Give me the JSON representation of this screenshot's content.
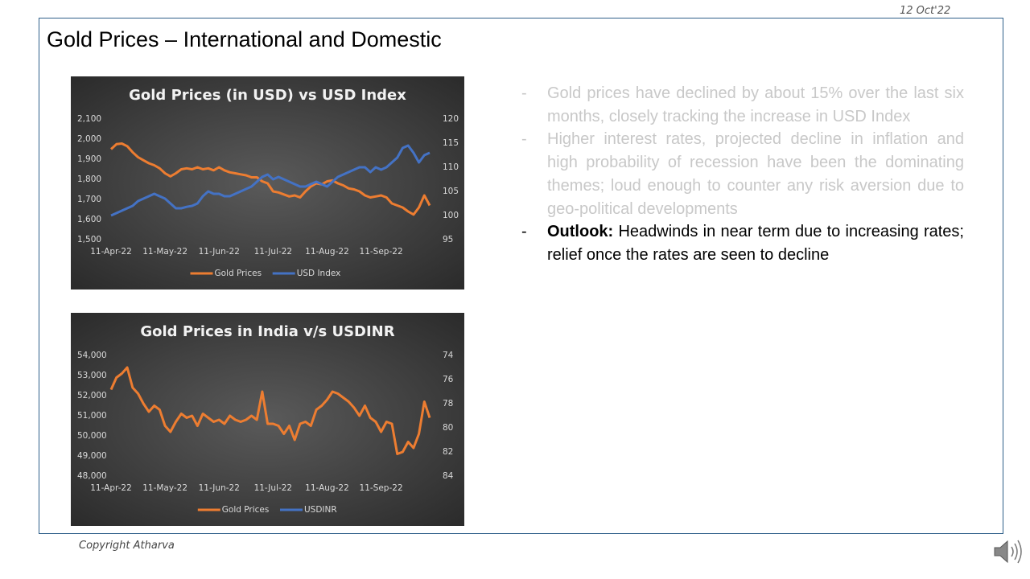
{
  "date": "12 Oct'22",
  "title": "Gold Prices – International and Domestic",
  "bullets": [
    {
      "marker": "-",
      "text": "Gold prices have declined by about 15% over the last six months, closely tracking the increase in USD Index"
    },
    {
      "marker": "-",
      "text": "Higher interest rates, projected decline in inflation and high probability of recession have been the dominating themes; loud enough to counter any risk aversion due to geo-political developments"
    },
    {
      "marker": "-",
      "lead": "Outlook:",
      "text": "Headwinds in near term due to increasing rates; relief once the rates are seen to decline"
    }
  ],
  "footer": "Copyright Atharva",
  "chart_data": [
    {
      "type": "line",
      "title": "Gold Prices (in USD) vs USD Index",
      "categories": [
        "11-Apr-22",
        null,
        null,
        null,
        null,
        null,
        null,
        null,
        null,
        null,
        "11-May-22",
        null,
        null,
        null,
        null,
        null,
        null,
        null,
        null,
        null,
        "11-Jun-22",
        null,
        null,
        null,
        null,
        null,
        null,
        null,
        null,
        null,
        "11-Jul-22",
        null,
        null,
        null,
        null,
        null,
        null,
        null,
        null,
        null,
        "11-Aug-22",
        null,
        null,
        null,
        null,
        null,
        null,
        null,
        null,
        null,
        "11-Sep-22",
        null,
        null,
        null,
        null,
        null,
        null,
        null,
        null,
        null
      ],
      "series": [
        {
          "name": "Gold Prices",
          "color": "#ed7d31",
          "axis": "y",
          "values": [
            1950,
            1975,
            1978,
            1965,
            1935,
            1910,
            1895,
            1880,
            1870,
            1855,
            1830,
            1815,
            1830,
            1850,
            1855,
            1850,
            1860,
            1850,
            1855,
            1845,
            1860,
            1845,
            1835,
            1830,
            1825,
            1820,
            1810,
            1810,
            1790,
            1780,
            1740,
            1735,
            1725,
            1715,
            1720,
            1710,
            1740,
            1765,
            1780,
            1775,
            1790,
            1795,
            1780,
            1770,
            1755,
            1750,
            1740,
            1720,
            1710,
            1715,
            1720,
            1710,
            1680,
            1670,
            1660,
            1640,
            1625,
            1660,
            1720,
            1670
          ]
        },
        {
          "name": "USD Index",
          "color": "#4472c4",
          "axis": "y2",
          "values": [
            100,
            100.5,
            101,
            101.5,
            102,
            103,
            103.5,
            104,
            104.5,
            104,
            103.5,
            102.5,
            101.5,
            101.5,
            101.8,
            102,
            102.5,
            104,
            105,
            104.5,
            104.5,
            104,
            104,
            104.5,
            105,
            105.5,
            106,
            107,
            108,
            108.5,
            107.5,
            108,
            107.5,
            107,
            106.5,
            106,
            106,
            106.5,
            107,
            106.5,
            106,
            107,
            108,
            108.5,
            109,
            109.5,
            110,
            110,
            109,
            110,
            109.5,
            110,
            111,
            112,
            114,
            114.5,
            113,
            111,
            112.5,
            113
          ]
        }
      ],
      "ylim": [
        1500,
        2100
      ],
      "yticks": [
        {
          "value": 1500,
          "label": "1,500"
        },
        {
          "value": 1600,
          "label": "1,600"
        },
        {
          "value": 1700,
          "label": "1,700"
        },
        {
          "value": 1800,
          "label": "1,800"
        },
        {
          "value": 1900,
          "label": "1,900"
        },
        {
          "value": 2000,
          "label": "2,000"
        },
        {
          "value": 2100,
          "label": "2,100"
        }
      ],
      "y2lim": [
        95,
        120
      ],
      "y2ticks": [
        95,
        100,
        105,
        110,
        115,
        120
      ],
      "legend": "bottom",
      "grid": false
    },
    {
      "type": "line",
      "title": "Gold Prices in India v/s USDINR",
      "categories": [
        "11-Apr-22",
        null,
        null,
        null,
        null,
        null,
        null,
        null,
        null,
        null,
        "11-May-22",
        null,
        null,
        null,
        null,
        null,
        null,
        null,
        null,
        null,
        "11-Jun-22",
        null,
        null,
        null,
        null,
        null,
        null,
        null,
        null,
        null,
        "11-Jul-22",
        null,
        null,
        null,
        null,
        null,
        null,
        null,
        null,
        null,
        "11-Aug-22",
        null,
        null,
        null,
        null,
        null,
        null,
        null,
        null,
        null,
        "11-Sep-22",
        null,
        null,
        null,
        null,
        null,
        null,
        null,
        null,
        null
      ],
      "series": [
        {
          "name": "Gold Prices",
          "color": "#ed7d31",
          "axis": "y",
          "values": [
            52300,
            52900,
            53100,
            53400,
            52400,
            52100,
            51600,
            51200,
            51500,
            51300,
            50500,
            50200,
            50700,
            51100,
            50900,
            51000,
            50500,
            51100,
            50900,
            50700,
            50800,
            50600,
            51000,
            50800,
            50700,
            50800,
            51000,
            50800,
            52200,
            50600,
            50600,
            50500,
            50100,
            50500,
            49800,
            50600,
            50700,
            50500,
            51300,
            51500,
            51800,
            52200,
            52100,
            51900,
            51700,
            51400,
            51000,
            51500,
            50900,
            50700,
            50200,
            50700,
            50600,
            49100,
            49200,
            49700,
            49400,
            50100,
            51700,
            50900
          ]
        },
        {
          "name": "USDINR",
          "color": "#4472c4",
          "axis": "y2",
          "values": [
            null,
            null,
            null,
            null,
            null,
            null,
            null,
            null,
            null,
            null,
            null,
            null,
            null,
            null,
            null,
            null,
            null,
            null,
            null,
            null,
            null,
            null,
            null,
            null,
            null,
            null,
            null,
            null,
            null,
            null,
            null,
            null,
            null,
            null,
            null,
            null,
            null,
            null,
            null,
            null,
            null,
            null,
            null,
            null,
            null,
            null,
            null,
            null,
            null,
            null,
            null,
            null,
            null,
            null,
            null,
            null,
            null,
            null,
            null,
            null
          ]
        }
      ],
      "ylim": [
        48000,
        54000
      ],
      "yticks": [
        {
          "value": 48000,
          "label": "48,000"
        },
        {
          "value": 49000,
          "label": "49,000"
        },
        {
          "value": 50000,
          "label": "50,000"
        },
        {
          "value": 51000,
          "label": "51,000"
        },
        {
          "value": 52000,
          "label": "52,000"
        },
        {
          "value": 53000,
          "label": "53,000"
        },
        {
          "value": 54000,
          "label": "54,000"
        }
      ],
      "y2lim": [
        74,
        84
      ],
      "y2ticks": [
        74,
        76,
        78,
        80,
        82,
        84
      ],
      "y2_reversed": true,
      "legend": "bottom",
      "grid": false
    }
  ]
}
